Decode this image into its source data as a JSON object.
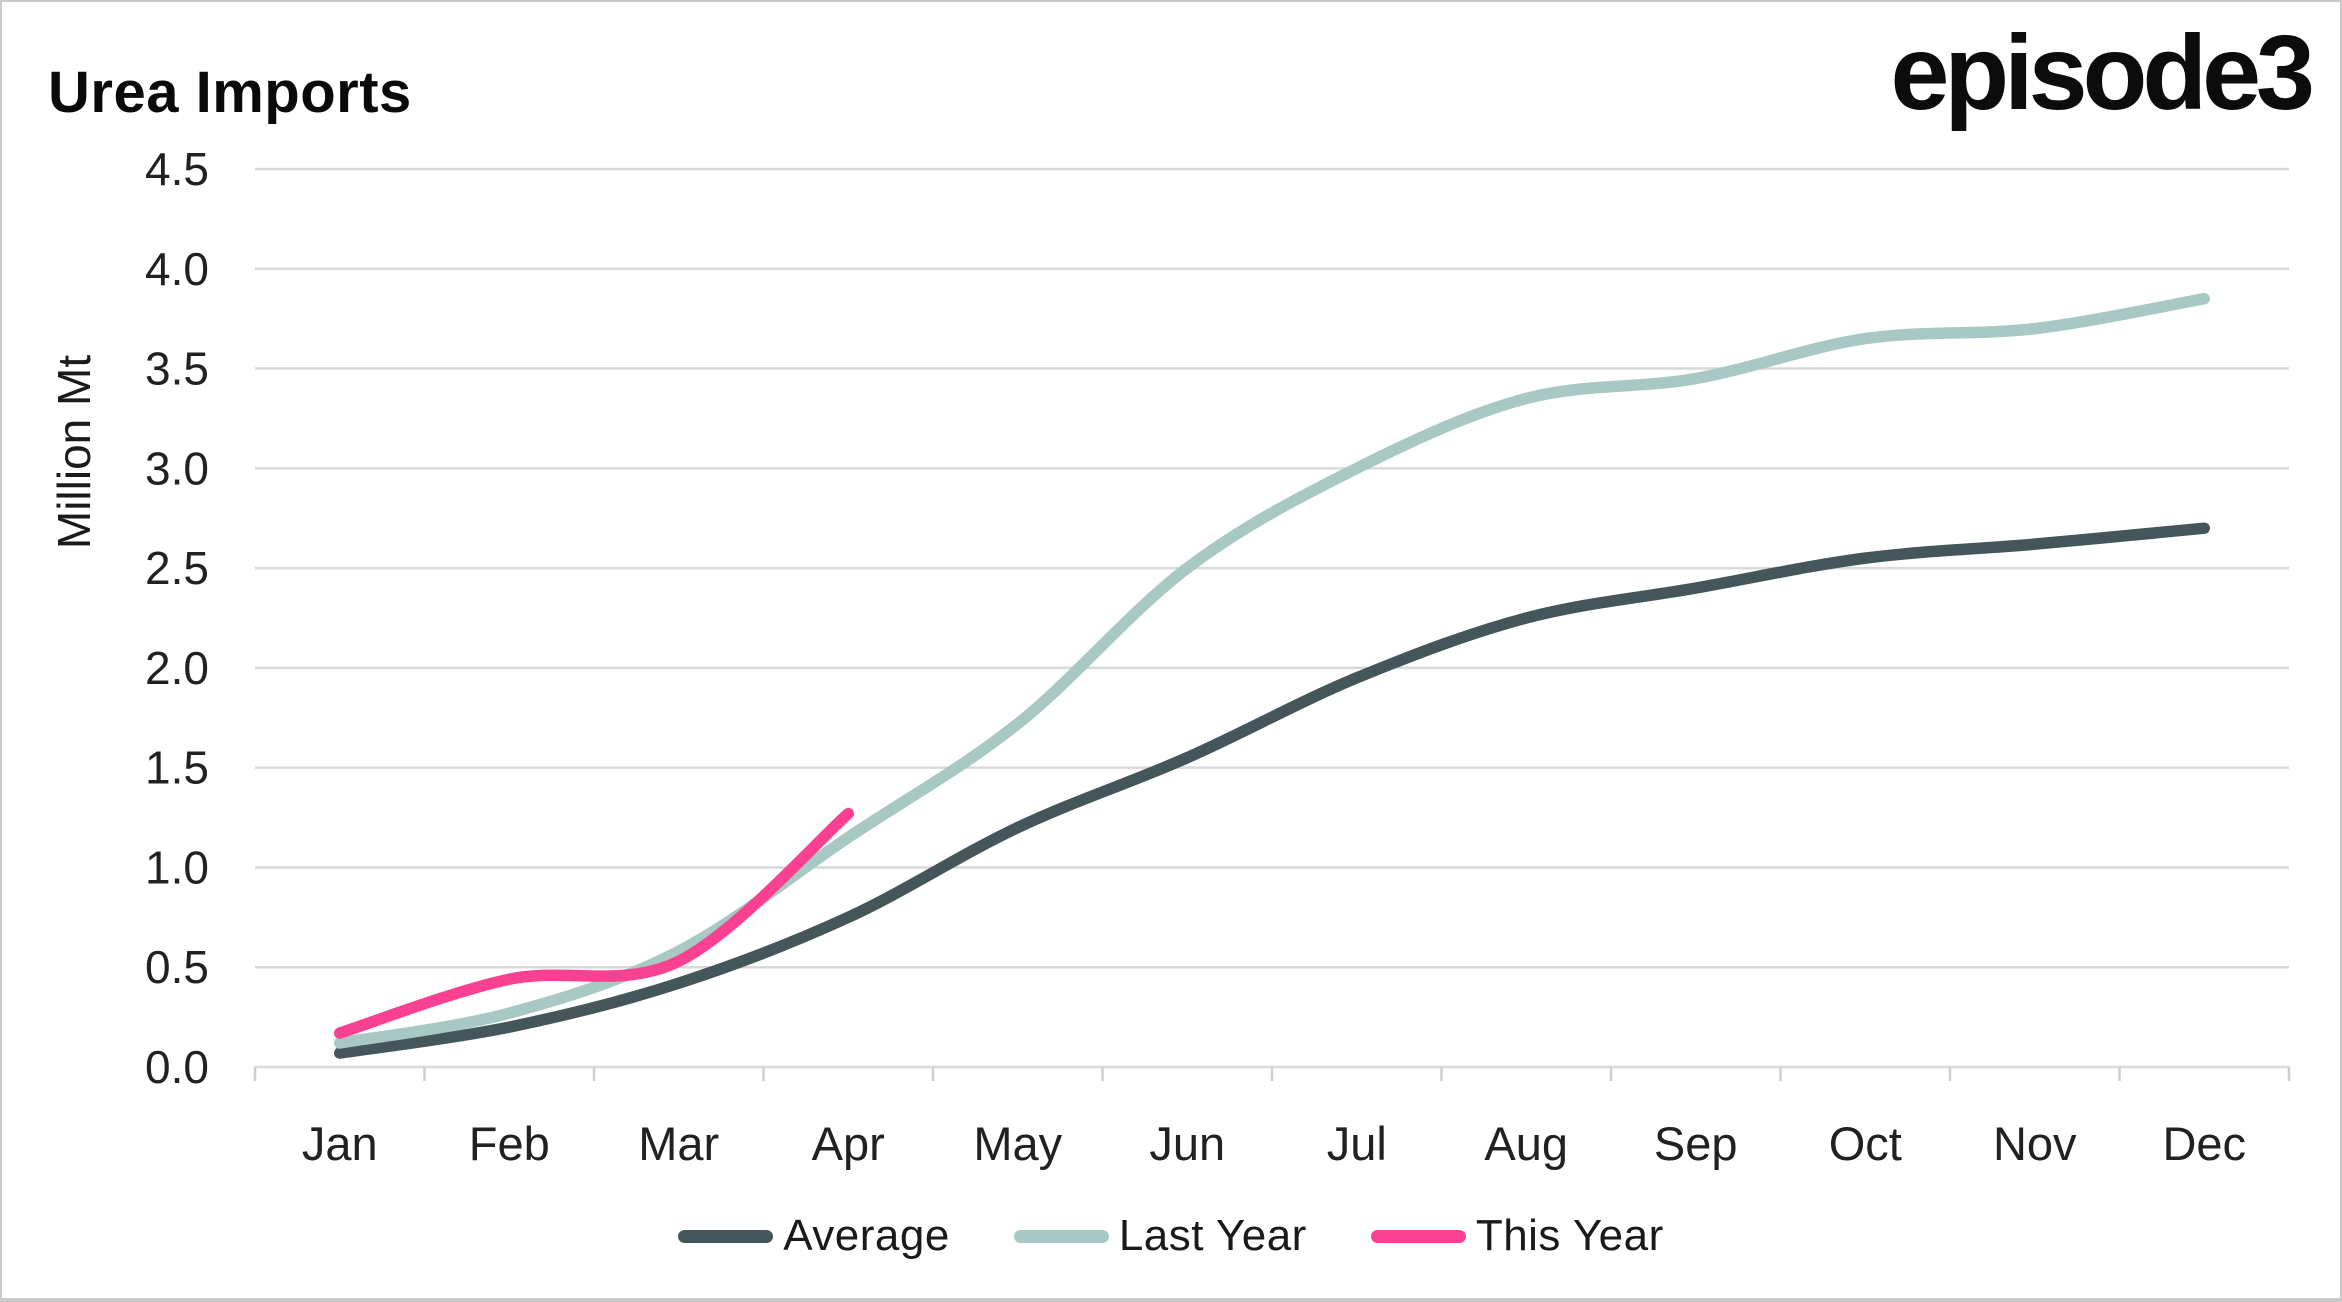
{
  "page": {
    "title": "Urea Imports",
    "logo": "episode3"
  },
  "chart_data": {
    "type": "line",
    "title": "Urea Imports",
    "ylabel": "Million Mt",
    "xlabel": "",
    "categories": [
      "Jan",
      "Feb",
      "Mar",
      "Apr",
      "May",
      "Jun",
      "Jul",
      "Aug",
      "Sep",
      "Oct",
      "Nov",
      "Dec"
    ],
    "y_tick_labels": [
      "0.0",
      "0.5",
      "1.0",
      "1.5",
      "2.0",
      "2.5",
      "3.0",
      "3.5",
      "4.0",
      "4.5"
    ],
    "ylim": [
      0,
      4.5
    ],
    "y_step": 0.5,
    "grid": true,
    "legend_position": "bottom",
    "axis_color": "#D9D9D9",
    "tick_label_color": "#212121",
    "series": [
      {
        "name": "Average",
        "color": "#44565A",
        "values": [
          0.07,
          0.2,
          0.42,
          0.75,
          1.2,
          1.55,
          1.95,
          2.25,
          2.4,
          2.55,
          2.62,
          2.7
        ]
      },
      {
        "name": "Last Year",
        "color": "#A8C8C4",
        "values": [
          0.12,
          0.27,
          0.58,
          1.15,
          1.72,
          2.5,
          3.0,
          3.35,
          3.45,
          3.65,
          3.7,
          3.85
        ]
      },
      {
        "name": "This Year",
        "color": "#FA4191",
        "values": [
          0.17,
          0.44,
          0.53,
          1.27
        ]
      }
    ]
  }
}
